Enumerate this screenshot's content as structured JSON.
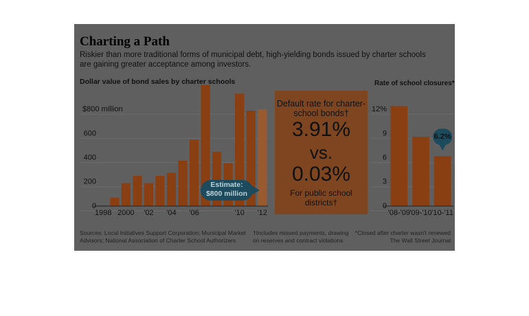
{
  "header": {
    "title": "Charting a Path",
    "subtitle": "Riskier than more traditional forms of municipal debt, high-yielding bonds issued by charter schools are gaining greater acceptance among investors."
  },
  "chart_data": [
    {
      "type": "bar",
      "title": "Dollar value of bond sales by charter schools",
      "categories": [
        "1998",
        null,
        "2000",
        null,
        "'02",
        null,
        "'04",
        null,
        "'06",
        null,
        null,
        null,
        "'10",
        null,
        "'12"
      ],
      "values": [
        5,
        70,
        190,
        250,
        190,
        250,
        275,
        375,
        550,
        1000,
        450,
        355,
        930,
        790,
        800
      ],
      "colors": [
        "#8a3f12",
        "#8a3f12",
        "#8a3f12",
        "#8a3f12",
        "#8a3f12",
        "#8a3f12",
        "#8a3f12",
        "#8a3f12",
        "#8a3f12",
        "#8a3f12",
        "#8a3f12",
        "#8a3f12",
        "#8a3f12",
        "#8a3f12",
        "#9a5a30"
      ],
      "ylim": [
        0,
        1000
      ],
      "yticks": [
        0,
        200,
        400,
        600,
        {
          "value": 800,
          "label": "$800 million"
        }
      ],
      "annotation": "Estimate: $800 million",
      "grid": true
    },
    {
      "type": "bar",
      "title": "Rate of school closures*",
      "categories": [
        "'08-'09",
        "'09-'10",
        "'10-'11"
      ],
      "values": [
        12.4,
        8.6,
        6.2
      ],
      "value_labels": [
        null,
        null,
        "6.2%"
      ],
      "color": "#8a3f12",
      "ylim": [
        0,
        15
      ],
      "yticks": [
        0,
        3,
        6,
        9,
        {
          "value": 12,
          "label": "12%"
        }
      ],
      "grid": true
    }
  ],
  "callout": {
    "heading": "Default rate for charter-school bonds†",
    "value_a": "3.91%",
    "versus": "vs.",
    "value_b": "0.03%",
    "footer": "For public school districts†"
  },
  "footer": {
    "sources": "Sources: Local Initiatives Support Corporation; Municipal Market Advisors; National Association of Charter School Authorizers",
    "note_dagger": "†Includes missed payments, drawing on reserves and contract violations",
    "note_star": "*Closed after charter wasn't renewed",
    "credit": "The Wall Street Journal"
  }
}
